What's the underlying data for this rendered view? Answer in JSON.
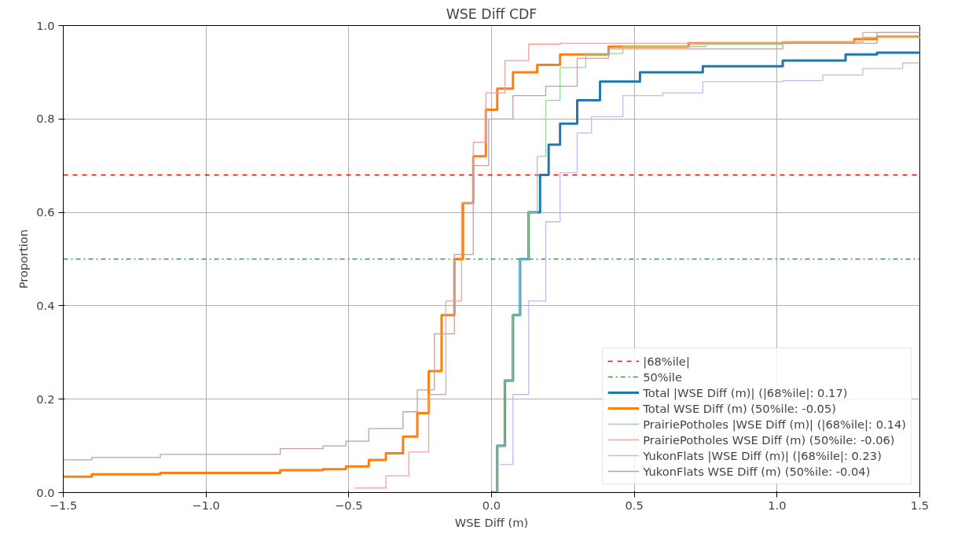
{
  "chart_data": {
    "type": "step",
    "title": "WSE Diff CDF",
    "xlabel": "WSE Diff (m)",
    "ylabel": "Proportion",
    "xlim": [
      -1.5,
      1.5
    ],
    "ylim": [
      0,
      1
    ],
    "xticks": [
      {
        "value": -1.5,
        "label": "−1.5"
      },
      {
        "value": -1.0,
        "label": "−1.0"
      },
      {
        "value": -0.5,
        "label": "−0.5"
      },
      {
        "value": 0,
        "label": "0.0"
      },
      {
        "value": 0.5,
        "label": "0.5"
      },
      {
        "value": 1.0,
        "label": "1.0"
      },
      {
        "value": 1.5,
        "label": "1.5"
      }
    ],
    "yticks": [
      {
        "value": 0,
        "label": "0.0"
      },
      {
        "value": 0.2,
        "label": "0.2"
      },
      {
        "value": 0.4,
        "label": "0.4"
      },
      {
        "value": 0.6,
        "label": "0.6"
      },
      {
        "value": 0.8,
        "label": "0.8"
      },
      {
        "value": 1.0,
        "label": "1.0"
      }
    ],
    "grid": true,
    "legend": "bottom right",
    "ref_lines": [
      {
        "axis": "y",
        "value": 0.68,
        "label": "|68%ile|",
        "color": "#ff0000",
        "line_style": "dashed"
      },
      {
        "axis": "y",
        "value": 0.5,
        "label": "50%ile",
        "color": "#2ca02c",
        "line_style": "dashdot"
      }
    ],
    "series": [
      {
        "name": "Total |WSE Diff (m)| (|68%ile|: 0.17)",
        "color": "#1f77b4",
        "x": [
          0,
          0.02,
          0.047,
          0.075,
          0.1,
          0.13,
          0.17,
          0.2,
          0.24,
          0.3,
          0.38,
          0.52,
          0.74,
          1.02,
          1.24,
          1.35,
          1.5
        ],
        "values": [
          0,
          0.1,
          0.24,
          0.38,
          0.5,
          0.6,
          0.68,
          0.745,
          0.79,
          0.84,
          0.88,
          0.9,
          0.913,
          0.925,
          0.938,
          0.942,
          0.944
        ]
      },
      {
        "name": "Total WSE Diff (m) (50%ile: -0.05)",
        "color": "#ff7f0e",
        "x": [
          -1.5,
          -1.4,
          -1.16,
          -0.76,
          -0.74,
          -0.59,
          -0.51,
          -0.43,
          -0.37,
          -0.31,
          -0.26,
          -0.22,
          -0.175,
          -0.13,
          -0.1,
          -0.064,
          -0.02,
          0.02,
          0.075,
          0.16,
          0.24,
          0.41,
          0.69,
          1.02,
          1.27,
          1.35,
          1.5
        ],
        "values": [
          0.034,
          0.039,
          0.042,
          0.042,
          0.048,
          0.05,
          0.056,
          0.07,
          0.084,
          0.12,
          0.17,
          0.26,
          0.38,
          0.5,
          0.62,
          0.72,
          0.82,
          0.865,
          0.9,
          0.916,
          0.938,
          0.955,
          0.962,
          0.964,
          0.971,
          0.976,
          0.978
        ]
      },
      {
        "name": "PrairiePotholes |WSE Diff (m)| (|68%ile|: 0.14)",
        "color": "#98d598",
        "x": [
          0,
          0.02,
          0.047,
          0.075,
          0.1,
          0.13,
          0.16,
          0.19,
          0.24,
          0.33,
          0.46,
          0.75,
          1.02,
          1.3,
          1.5
        ],
        "values": [
          0,
          0.1,
          0.24,
          0.38,
          0.5,
          0.6,
          0.72,
          0.84,
          0.91,
          0.94,
          0.955,
          0.96,
          0.965,
          0.975,
          0.978
        ]
      },
      {
        "name": "PrairiePotholes WSE Diff (m) (50%ile: -0.06)",
        "color": "#f2a0a0",
        "x": [
          -0.48,
          -0.37,
          -0.29,
          -0.22,
          -0.16,
          -0.105,
          -0.064,
          -0.02,
          0.047,
          0.13,
          0.24,
          1.02,
          1.3,
          1.5
        ],
        "values": [
          0.01,
          0.036,
          0.087,
          0.21,
          0.41,
          0.62,
          0.75,
          0.856,
          0.925,
          0.96,
          0.962,
          0.965,
          0.985,
          0.988
        ]
      },
      {
        "name": "YukonFlats |WSE Diff (m)| (|68%ile|: 0.23)",
        "color": "#c9b6ea",
        "x": [
          0.03,
          0.075,
          0.13,
          0.19,
          0.24,
          0.3,
          0.35,
          0.46,
          0.6,
          0.74,
          1.02,
          1.16,
          1.3,
          1.44,
          1.5
        ],
        "values": [
          0.06,
          0.21,
          0.41,
          0.58,
          0.685,
          0.77,
          0.805,
          0.85,
          0.856,
          0.88,
          0.882,
          0.894,
          0.908,
          0.92,
          0.92
        ]
      },
      {
        "name": "YukonFlats WSE Diff (m) (50%ile: -0.04)",
        "color": "#c4a09c",
        "x": [
          -1.5,
          -1.4,
          -1.16,
          -0.74,
          -0.59,
          -0.51,
          -0.43,
          -0.31,
          -0.26,
          -0.2,
          -0.13,
          -0.064,
          -0.01,
          0.075,
          0.19,
          0.3,
          0.41,
          1.02,
          1.35,
          1.5
        ],
        "values": [
          0.07,
          0.075,
          0.082,
          0.094,
          0.1,
          0.11,
          0.137,
          0.173,
          0.22,
          0.34,
          0.51,
          0.7,
          0.8,
          0.85,
          0.87,
          0.93,
          0.95,
          0.962,
          0.985,
          0.985
        ]
      }
    ]
  }
}
